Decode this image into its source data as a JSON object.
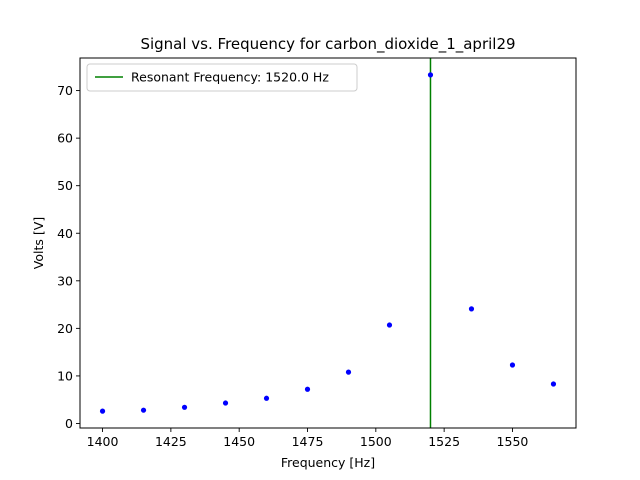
{
  "chart_data": {
    "type": "scatter",
    "title": "Signal vs. Frequency for carbon_dioxide_1_april29",
    "xlabel": "Frequency [Hz]",
    "ylabel": "Volts [V]",
    "xlim": [
      1391.75,
      1573.25
    ],
    "ylim": [
      -0.95,
      76.85
    ],
    "x_ticks": [
      1400,
      1425,
      1450,
      1475,
      1500,
      1525,
      1550
    ],
    "y_ticks": [
      0,
      10,
      20,
      30,
      40,
      50,
      60,
      70
    ],
    "grid": false,
    "legend_position": "top-left",
    "series": [
      {
        "color": "#0000ff",
        "x": [
          1400,
          1415,
          1430,
          1445,
          1460,
          1475,
          1490,
          1505,
          1520,
          1535,
          1550,
          1565
        ],
        "y": [
          2.6,
          2.8,
          3.4,
          4.3,
          5.3,
          7.2,
          10.8,
          20.7,
          73.3,
          24.1,
          12.3,
          8.3
        ]
      }
    ],
    "vline": {
      "x": 1520.0,
      "color": "#008000",
      "label": "Resonant Frequency: 1520.0 Hz"
    }
  }
}
